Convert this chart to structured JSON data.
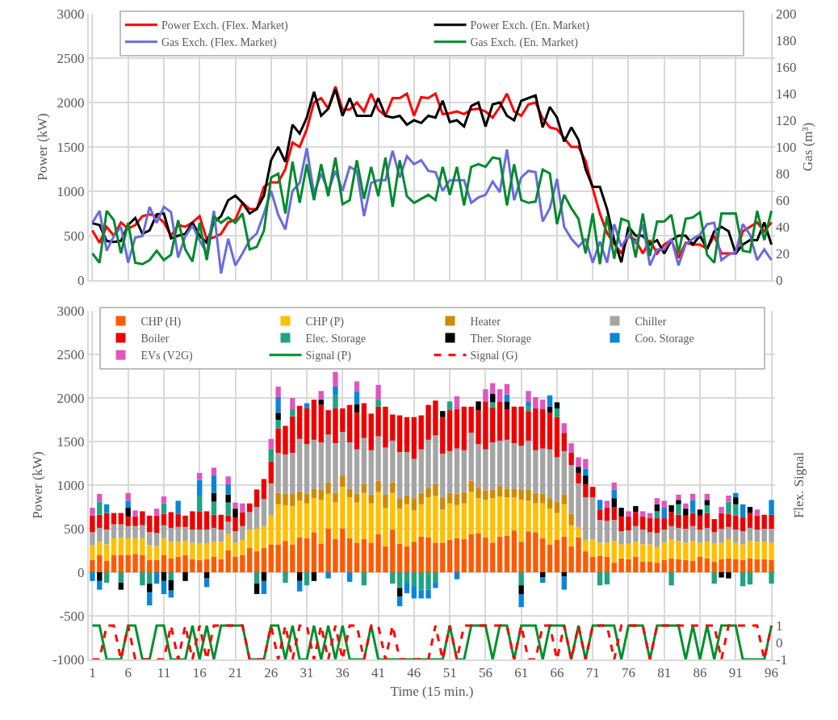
{
  "chart_data": [
    {
      "type": "line",
      "x": [
        1,
        2,
        3,
        4,
        5,
        6,
        7,
        8,
        9,
        10,
        11,
        12,
        13,
        14,
        15,
        16,
        17,
        18,
        19,
        20,
        21,
        22,
        23,
        24,
        25,
        26,
        27,
        28,
        29,
        30,
        31,
        32,
        33,
        34,
        35,
        36,
        37,
        38,
        39,
        40,
        41,
        42,
        43,
        44,
        45,
        46,
        47,
        48,
        49,
        50,
        51,
        52,
        53,
        54,
        55,
        56,
        57,
        58,
        59,
        60,
        61,
        62,
        63,
        64,
        65,
        66,
        67,
        68,
        69,
        70,
        71,
        72,
        73,
        74,
        75,
        76,
        77,
        78,
        79,
        80,
        81,
        82,
        83,
        84,
        85,
        86,
        87,
        88,
        89,
        90,
        91,
        92,
        93,
        94,
        95,
        96
      ],
      "ylabel": "Power (kW)",
      "y2label": "Gas (m³)",
      "xlim": [
        0.5,
        96.5
      ],
      "xticks": [
        1,
        6,
        11,
        16,
        21,
        26,
        31,
        36,
        41,
        46,
        51,
        56,
        61,
        66,
        71,
        76,
        81,
        86,
        91,
        96
      ],
      "ylim": [
        0,
        3000
      ],
      "yticks": [
        0,
        500,
        1000,
        1500,
        2000,
        2500,
        3000
      ],
      "y2lim": [
        0,
        200
      ],
      "y2ticks": [
        0,
        20,
        40,
        60,
        80,
        100,
        120,
        140,
        160,
        180,
        200
      ],
      "tick_labels": "y",
      "grid": true,
      "legend": "top",
      "marker": "none",
      "series": [
        {
          "name": "Power Exch. (Flex. Market)",
          "color": "#ff0000",
          "values": [
            560,
            420,
            600,
            500,
            650,
            580,
            620,
            720,
            740,
            720,
            650,
            500,
            620,
            600,
            650,
            720,
            460,
            480,
            520,
            650,
            680,
            870,
            800,
            800,
            1050,
            1100,
            1100,
            1250,
            1550,
            1500,
            1700,
            2000,
            2050,
            1930,
            2180,
            1920,
            1920,
            2000,
            1900,
            2100,
            1920,
            1850,
            2050,
            2050,
            2100,
            1850,
            2060,
            2050,
            2100,
            1870,
            1880,
            1900,
            1870,
            1920,
            1930,
            1900,
            1830,
            1950,
            2100,
            1900,
            1850,
            1980,
            2000,
            1820,
            1720,
            1700,
            1600,
            1500,
            1500,
            1340,
            1030,
            750,
            530,
            410,
            300,
            500,
            450,
            300,
            450,
            300,
            400,
            450,
            250,
            420,
            400,
            400,
            350,
            500,
            300,
            300,
            300,
            550,
            600,
            650,
            550,
            650
          ]
        },
        {
          "name": "Power Exch. (En. Market)",
          "color": "#000000",
          "values": [
            640,
            620,
            440,
            430,
            440,
            620,
            700,
            520,
            560,
            740,
            750,
            470,
            500,
            520,
            650,
            500,
            420,
            650,
            720,
            900,
            950,
            870,
            750,
            800,
            950,
            1350,
            1500,
            1330,
            1750,
            1650,
            1830,
            2120,
            1850,
            1930,
            2150,
            1850,
            2050,
            1850,
            1850,
            1850,
            2050,
            1850,
            1830,
            1850,
            1750,
            1800,
            1770,
            1850,
            1830,
            2020,
            1780,
            1800,
            1730,
            1960,
            2000,
            1730,
            1980,
            2000,
            1850,
            1800,
            2020,
            2050,
            2080,
            1720,
            1950,
            1830,
            1560,
            1720,
            1580,
            1250,
            1050,
            1050,
            800,
            450,
            200,
            600,
            500,
            500,
            400,
            450,
            300,
            450,
            500,
            500,
            400,
            500,
            350,
            550,
            600,
            550,
            300,
            400,
            450,
            450,
            650,
            400
          ]
        },
        {
          "name": "Gas Exch. (Flex. Market)",
          "color": "#6b6bdf",
          "axis": "y2",
          "values": [
            43,
            52,
            22,
            33,
            40,
            13,
            32,
            33,
            55,
            43,
            55,
            51,
            17,
            33,
            41,
            30,
            20,
            52,
            5,
            31,
            11,
            20,
            30,
            35,
            50,
            67,
            49,
            38,
            67,
            73,
            99,
            65,
            80,
            67,
            82,
            67,
            85,
            82,
            48,
            73,
            75,
            75,
            97,
            77,
            93,
            87,
            90,
            82,
            81,
            67,
            75,
            75,
            75,
            58,
            62,
            64,
            74,
            66,
            98,
            60,
            77,
            82,
            81,
            44,
            54,
            76,
            40,
            31,
            25,
            31,
            13,
            29,
            13,
            42,
            25,
            34,
            27,
            42,
            11,
            23,
            23,
            31,
            11,
            27,
            31,
            34,
            42,
            43,
            15,
            19,
            21,
            42,
            34,
            15,
            23,
            15
          ]
        },
        {
          "name": "Gas Exch. (En. Market)",
          "color": "#008a2e",
          "axis": "y2",
          "values": [
            20,
            13,
            52,
            45,
            20,
            43,
            13,
            12,
            15,
            22,
            15,
            19,
            45,
            23,
            14,
            43,
            15,
            48,
            43,
            47,
            43,
            50,
            23,
            25,
            37,
            77,
            80,
            50,
            89,
            58,
            87,
            60,
            87,
            63,
            92,
            57,
            60,
            90,
            61,
            85,
            63,
            92,
            55,
            90,
            63,
            58,
            61,
            64,
            60,
            85,
            64,
            85,
            56,
            85,
            87,
            85,
            92,
            91,
            56,
            87,
            60,
            58,
            59,
            83,
            80,
            42,
            64,
            54,
            46,
            20,
            50,
            12,
            48,
            16,
            46,
            44,
            17,
            50,
            18,
            44,
            44,
            49,
            20,
            46,
            47,
            51,
            19,
            13,
            50,
            50,
            50,
            22,
            21,
            52,
            30,
            52
          ]
        }
      ]
    },
    {
      "type": "bar",
      "stacked": true,
      "x": [
        1,
        2,
        3,
        4,
        5,
        6,
        7,
        8,
        9,
        10,
        11,
        12,
        13,
        14,
        15,
        16,
        17,
        18,
        19,
        20,
        21,
        22,
        23,
        24,
        25,
        26,
        27,
        28,
        29,
        30,
        31,
        32,
        33,
        34,
        35,
        36,
        37,
        38,
        39,
        40,
        41,
        42,
        43,
        44,
        45,
        46,
        47,
        48,
        49,
        50,
        51,
        52,
        53,
        54,
        55,
        56,
        57,
        58,
        59,
        60,
        61,
        62,
        63,
        64,
        65,
        66,
        67,
        68,
        69,
        70,
        71,
        72,
        73,
        74,
        75,
        76,
        77,
        78,
        79,
        80,
        81,
        82,
        83,
        84,
        85,
        86,
        87,
        88,
        89,
        90,
        91,
        92,
        93,
        94,
        95,
        96
      ],
      "xlabel": "Time (15 min.)",
      "ylabel": "Power (kW)",
      "y2label": "Flex. Signal",
      "xlim": [
        0.5,
        96.5
      ],
      "xticks": [
        1,
        6,
        11,
        16,
        21,
        26,
        31,
        36,
        41,
        46,
        51,
        56,
        61,
        66,
        71,
        76,
        81,
        86,
        91,
        96
      ],
      "ylim": [
        -1000,
        3000
      ],
      "yticks": [
        -1000,
        -500,
        0,
        500,
        1000,
        1500,
        2000,
        2500,
        3000
      ],
      "y2lim": [
        -1,
        19.6
      ],
      "y2ticks": [
        -1,
        0,
        1
      ],
      "grid": true,
      "legend": "top",
      "series": [
        {
          "name": "CHP (H)",
          "color": "#ff5a00",
          "values": [
            140,
            200,
            130,
            200,
            200,
            200,
            210,
            200,
            140,
            140,
            200,
            160,
            180,
            200,
            150,
            140,
            150,
            180,
            150,
            250,
            180,
            200,
            280,
            240,
            280,
            320,
            320,
            360,
            320,
            400,
            390,
            460,
            330,
            500,
            380,
            500,
            390,
            340,
            380,
            340,
            440,
            300,
            490,
            330,
            300,
            350,
            410,
            400,
            340,
            340,
            370,
            390,
            380,
            440,
            450,
            400,
            340,
            410,
            420,
            480,
            350,
            470,
            460,
            390,
            320,
            370,
            410,
            300,
            400,
            240,
            180,
            190,
            180,
            110,
            160,
            150,
            180,
            120,
            120,
            110,
            140,
            160,
            150,
            140,
            130,
            180,
            160,
            120,
            150,
            160,
            150,
            140,
            160,
            150,
            150,
            140
          ]
        },
        {
          "name": "CHP (P)",
          "color": "#ffc000",
          "values": [
            170,
            150,
            190,
            190,
            200,
            190,
            180,
            190,
            170,
            160,
            190,
            190,
            170,
            160,
            190,
            190,
            180,
            170,
            200,
            190,
            160,
            170,
            210,
            260,
            250,
            330,
            460,
            410,
            440,
            420,
            400,
            390,
            500,
            400,
            420,
            480,
            470,
            460,
            530,
            450,
            480,
            440,
            420,
            400,
            480,
            360,
            370,
            460,
            540,
            380,
            420,
            380,
            410,
            480,
            400,
            430,
            510,
            460,
            440,
            380,
            480,
            350,
            330,
            400,
            410,
            310,
            370,
            240,
            120,
            130,
            200,
            150,
            160,
            250,
            160,
            180,
            170,
            200,
            200,
            180,
            200,
            220,
            210,
            200,
            230,
            160,
            190,
            210,
            190,
            220,
            190,
            180,
            200,
            200,
            200,
            200
          ]
        },
        {
          "name": "Heater",
          "color": "#d08a00",
          "values": [
            null,
            null,
            null,
            null,
            null,
            null,
            null,
            null,
            null,
            null,
            null,
            null,
            null,
            null,
            null,
            null,
            null,
            null,
            null,
            null,
            null,
            null,
            null,
            null,
            null,
            null,
            130,
            130,
            140,
            110,
            110,
            110,
            120,
            130,
            110,
            130,
            100,
            100,
            100,
            100,
            130,
            150,
            120,
            120,
            100,
            140,
            130,
            110,
            130,
            140,
            120,
            130,
            130,
            130,
            120,
            110,
            100,
            120,
            100,
            100,
            120,
            130,
            120,
            110,
            120,
            130,
            110,
            130,
            null,
            null,
            null,
            null,
            null,
            null,
            null,
            null,
            null,
            null,
            null,
            null,
            null,
            null,
            null,
            null,
            null,
            null,
            null,
            null,
            null,
            null,
            null,
            null,
            null,
            null,
            null,
            null
          ]
        },
        {
          "name": "Chiller",
          "color": "#a5a5a5",
          "values": [
            150,
            160,
            170,
            160,
            150,
            140,
            140,
            150,
            150,
            150,
            150,
            160,
            170,
            160,
            150,
            160,
            160,
            160,
            140,
            140,
            130,
            160,
            200,
            250,
            310,
            370,
            460,
            450,
            470,
            600,
            570,
            560,
            540,
            550,
            570,
            500,
            530,
            510,
            530,
            510,
            510,
            540,
            480,
            530,
            500,
            450,
            500,
            550,
            560,
            500,
            480,
            520,
            480,
            550,
            500,
            470,
            540,
            520,
            560,
            520,
            500,
            560,
            490,
            520,
            560,
            510,
            500,
            560,
            500,
            490,
            480,
            260,
            250,
            240,
            150,
            150,
            180,
            170,
            140,
            160,
            150,
            150,
            150,
            160,
            170,
            150,
            160,
            130,
            160,
            140,
            150,
            150,
            150,
            140,
            150,
            160
          ]
        },
        {
          "name": "Boiler",
          "color": "#ee0000",
          "values": [
            190,
            150,
            190,
            130,
            130,
            110,
            110,
            160,
            190,
            200,
            130,
            180,
            150,
            130,
            210,
            210,
            210,
            150,
            170,
            70,
            160,
            160,
            100,
            200,
            230,
            250,
            280,
            330,
            420,
            380,
            410,
            460,
            430,
            280,
            400,
            270,
            430,
            420,
            400,
            420,
            340,
            470,
            300,
            420,
            400,
            480,
            390,
            400,
            400,
            420,
            470,
            450,
            500,
            300,
            390,
            550,
            400,
            450,
            350,
            420,
            450,
            340,
            480,
            450,
            420,
            460,
            210,
            140,
            120,
            150,
            120,
            120,
            150,
            150,
            170,
            160,
            160,
            150,
            160,
            170,
            130,
            160,
            150,
            150,
            150,
            160,
            170,
            150,
            180,
            150,
            160,
            160,
            170,
            160,
            160,
            160
          ]
        },
        {
          "name": "Elec. Storage",
          "color": "#1fa383",
          "values": [
            null,
            150,
            -120,
            null,
            -120,
            null,
            null,
            -150,
            -130,
            null,
            120,
            -90,
            null,
            null,
            null,
            180,
            null,
            150,
            null,
            150,
            null,
            null,
            null,
            -130,
            null,
            150,
            100,
            -120,
            80,
            null,
            -150,
            null,
            null,
            null,
            150,
            null,
            null,
            null,
            -150,
            null,
            80,
            null,
            -130,
            -180,
            -120,
            -150,
            -200,
            -200,
            -120,
            null,
            100,
            null,
            null,
            null,
            null,
            null,
            60,
            null,
            null,
            null,
            -150,
            50,
            null,
            null,
            null,
            100,
            null,
            null,
            null,
            null,
            null,
            -150,
            -140,
            null,
            null,
            null,
            null,
            null,
            null,
            80,
            null,
            -150,
            120,
            null,
            null,
            null,
            90,
            -130,
            null,
            140,
            130,
            -160,
            -140,
            null,
            null,
            -130
          ]
        },
        {
          "name": "Ther. Storage",
          "color": "#000000",
          "values": [
            null,
            -100,
            null,
            null,
            -80,
            100,
            null,
            null,
            -100,
            null,
            -100,
            -120,
            null,
            -100,
            null,
            null,
            -70,
            100,
            null,
            90,
            100,
            null,
            null,
            -120,
            -100,
            null,
            80,
            null,
            null,
            -100,
            null,
            -100,
            60,
            null,
            null,
            null,
            null,
            100,
            null,
            null,
            null,
            null,
            null,
            -100,
            null,
            null,
            null,
            null,
            null,
            70,
            null,
            null,
            null,
            null,
            100,
            null,
            100,
            null,
            90,
            null,
            -100,
            null,
            null,
            -60,
            70,
            70,
            -50,
            null,
            70,
            100,
            null,
            null,
            null,
            100,
            100,
            null,
            70,
            null,
            null,
            80,
            null,
            80,
            50,
            80,
            null,
            70,
            60,
            null,
            -60,
            -70,
            80,
            null,
            70,
            null,
            null,
            null
          ]
        },
        {
          "name": "Coo. Storage",
          "color": "#0a86d8",
          "values": [
            -100,
            -100,
            100,
            null,
            null,
            80,
            null,
            null,
            -150,
            -130,
            -150,
            -80,
            150,
            null,
            null,
            180,
            -100,
            200,
            null,
            120,
            null,
            null,
            null,
            null,
            -150,
            null,
            180,
            null,
            null,
            -120,
            60,
            null,
            null,
            -70,
            100,
            null,
            -110,
            150,
            null,
            null,
            null,
            null,
            null,
            -110,
            -120,
            -150,
            -100,
            -100,
            -60,
            null,
            null,
            -80,
            null,
            null,
            null,
            null,
            null,
            null,
            80,
            null,
            -150,
            60,
            null,
            -60,
            130,
            null,
            -150,
            null,
            null,
            80,
            null,
            110,
            null,
            100,
            null,
            null,
            null,
            null,
            null,
            null,
            120,
            null,
            null,
            null,
            150,
            null,
            null,
            null,
            null,
            null,
            50,
            150,
            null,
            null,
            null,
            170
          ]
        },
        {
          "name": "EVs (V2G)",
          "color": "#e055c0",
          "values": [
            90,
            90,
            null,
            null,
            null,
            90,
            70,
            null,
            null,
            80,
            80,
            null,
            null,
            null,
            null,
            80,
            null,
            90,
            null,
            90,
            70,
            100,
            null,
            null,
            null,
            110,
            120,
            null,
            130,
            null,
            null,
            null,
            100,
            null,
            170,
            null,
            null,
            110,
            null,
            null,
            170,
            null,
            null,
            null,
            null,
            null,
            null,
            null,
            null,
            null,
            null,
            150,
            null,
            null,
            null,
            140,
            120,
            140,
            120,
            null,
            null,
            120,
            130,
            110,
            null,
            null,
            110,
            110,
            110,
            110,
            null,
            null,
            80,
            80,
            null,
            60,
            null,
            60,
            60,
            70,
            80,
            null,
            60,
            60,
            70,
            null,
            70,
            null,
            70,
            70,
            null,
            null,
            null,
            70,
            null,
            null
          ]
        },
        {
          "name": "Signal (P)",
          "type": "line",
          "axis": "y2",
          "color": "#00902c",
          "line_style": "solid",
          "values": [
            1,
            1,
            -1,
            -1,
            -1,
            1,
            1,
            -1,
            -1,
            1,
            1,
            -1,
            -1,
            -1,
            1,
            -1,
            1,
            -1,
            1,
            1,
            1,
            1,
            -1,
            -1,
            -1,
            1,
            1,
            -1,
            1,
            -1,
            -1,
            1,
            -1,
            1,
            -1,
            1,
            -1,
            -1,
            -1,
            1,
            -1,
            -1,
            -1,
            -1,
            -1,
            -1,
            -1,
            -1,
            -1,
            -1,
            1,
            -1,
            -1,
            1,
            1,
            1,
            -1,
            1,
            1,
            -1,
            1,
            1,
            1,
            -1,
            1,
            1,
            1,
            -1,
            1,
            -1,
            1,
            1,
            1,
            1,
            -1,
            1,
            1,
            1,
            -1,
            1,
            1,
            1,
            1,
            -1,
            1,
            -1,
            1,
            -1,
            1,
            1,
            1,
            -1,
            -1,
            -1,
            -1,
            1
          ]
        },
        {
          "name": "Signal (G)",
          "type": "line",
          "axis": "y2",
          "color": "#ff0000",
          "line_style": "dashed",
          "values": [
            -1,
            -1,
            1,
            1,
            -1,
            1,
            -1,
            -1,
            -1,
            -1,
            -1,
            1,
            -1,
            1,
            -1,
            1,
            -1,
            1,
            1,
            1,
            1,
            1,
            -1,
            -1,
            -1,
            1,
            -1,
            1,
            -1,
            1,
            1,
            -1,
            1,
            -1,
            1,
            -1,
            1,
            1,
            -1,
            1,
            1,
            -1,
            1,
            -1,
            -1,
            -1,
            -1,
            -1,
            1,
            -1,
            1,
            -1,
            1,
            1,
            1,
            1,
            1,
            1,
            1,
            -1,
            1,
            -1,
            -1,
            1,
            1,
            -1,
            1,
            -1,
            1,
            -1,
            1,
            1,
            1,
            -1,
            1,
            1,
            1,
            1,
            -1,
            1,
            1,
            1,
            1,
            1,
            1,
            1,
            1,
            1,
            -1,
            1,
            1,
            1,
            1,
            1,
            -1,
            1
          ]
        }
      ]
    }
  ]
}
